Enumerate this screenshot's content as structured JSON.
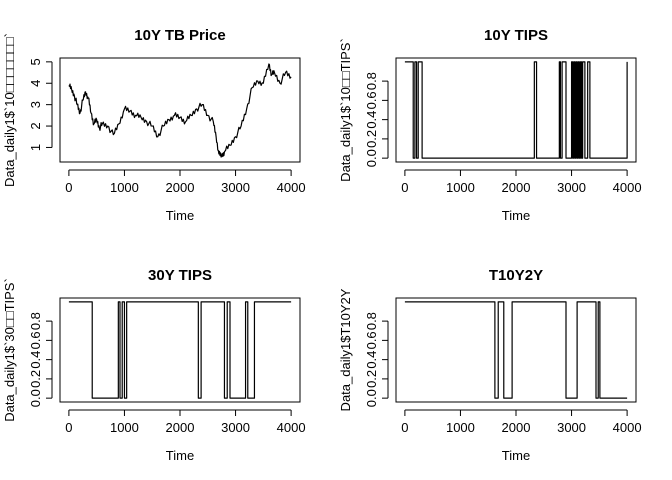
{
  "chart_data": [
    {
      "type": "line",
      "title": "10Y TB Price",
      "xlabel": "Time",
      "ylabel": "Data_daily1$`10□□□□□□□`",
      "xlim": [
        0,
        4000
      ],
      "ylim": [
        0.5,
        5.0
      ],
      "xticks": [
        0,
        1000,
        2000,
        3000,
        4000
      ],
      "yticks": [
        1,
        2,
        3,
        4,
        5
      ],
      "series": [
        {
          "x": [
            0,
            50,
            100,
            150,
            200,
            250,
            300,
            350,
            400,
            450,
            500,
            550,
            600,
            700,
            800,
            900,
            1000,
            1100,
            1200,
            1300,
            1400,
            1500,
            1600,
            1700,
            1800,
            1900,
            2000,
            2100,
            2200,
            2300,
            2400,
            2500,
            2600,
            2650,
            2700,
            2750,
            2800,
            2900,
            3000,
            3100,
            3200,
            3300,
            3400,
            3500,
            3600,
            3650,
            3700,
            3800,
            3900,
            4000
          ],
          "y": [
            3.9,
            3.7,
            3.4,
            3.0,
            2.6,
            3.2,
            3.6,
            3.3,
            2.6,
            2.1,
            2.3,
            1.9,
            2.1,
            2.0,
            1.6,
            2.1,
            2.8,
            2.7,
            2.5,
            2.4,
            2.2,
            2.0,
            1.5,
            2.0,
            2.3,
            2.5,
            2.4,
            2.2,
            2.5,
            2.8,
            3.0,
            2.5,
            2.2,
            1.5,
            0.7,
            0.6,
            0.8,
            1.1,
            1.5,
            2.0,
            2.8,
            3.8,
            4.1,
            4.0,
            4.9,
            4.4,
            4.5,
            4.0,
            4.5,
            4.3
          ]
        }
      ]
    },
    {
      "type": "line",
      "title": "10Y TIPS",
      "xlabel": "Time",
      "ylabel": "Data_daily1$`10□□TIPS`",
      "xlim": [
        0,
        4000
      ],
      "ylim": [
        0,
        1
      ],
      "xticks": [
        0,
        1000,
        2000,
        3000,
        4000
      ],
      "yticks": [
        0.0,
        0.2,
        0.4,
        0.6,
        0.8
      ],
      "ytick_labels": [
        "0.0",
        "0.2",
        "0.4",
        "0.6",
        "0.8"
      ],
      "series": [
        {
          "step": true,
          "x": [
            0,
            150,
            180,
            210,
            240,
            310,
            2330,
            2370,
            2780,
            2800,
            2830,
            2900,
            3000,
            3020,
            3040,
            3060,
            3080,
            3100,
            3120,
            3140,
            3160,
            3180,
            3200,
            3240,
            3290,
            3330,
            4000
          ],
          "y": [
            1,
            0,
            1,
            0,
            1,
            0,
            1,
            0,
            1,
            0,
            1,
            0,
            1,
            0,
            1,
            0,
            1,
            0,
            1,
            0,
            1,
            0,
            1,
            0,
            1,
            0,
            1
          ]
        }
      ]
    },
    {
      "type": "line",
      "title": "30Y TIPS",
      "xlabel": "Time",
      "ylabel": "Data_daily1$`30□□TIPS`",
      "xlim": [
        0,
        4000
      ],
      "ylim": [
        0,
        1
      ],
      "xticks": [
        0,
        1000,
        2000,
        3000,
        4000
      ],
      "yticks": [
        0.0,
        0.2,
        0.4,
        0.6,
        0.8
      ],
      "ytick_labels": [
        "0.0",
        "0.2",
        "0.4",
        "0.6",
        "0.8"
      ],
      "series": [
        {
          "step": true,
          "x": [
            0,
            420,
            890,
            920,
            960,
            1000,
            1040,
            2330,
            2380,
            2800,
            2850,
            2900,
            3180,
            3220,
            3340,
            4000
          ],
          "y": [
            1,
            0,
            1,
            0,
            1,
            0,
            1,
            0,
            1,
            0,
            1,
            0,
            1,
            0,
            1,
            1
          ]
        }
      ]
    },
    {
      "type": "line",
      "title": "T10Y2Y",
      "xlabel": "Time",
      "ylabel": "Data_daily1$T10Y2Y",
      "xlim": [
        0,
        4000
      ],
      "ylim": [
        0,
        1
      ],
      "xticks": [
        0,
        1000,
        2000,
        3000,
        4000
      ],
      "yticks": [
        0.0,
        0.2,
        0.4,
        0.6,
        0.8
      ],
      "ytick_labels": [
        "0.0",
        "0.2",
        "0.4",
        "0.6",
        "0.8"
      ],
      "series": [
        {
          "step": true,
          "x": [
            0,
            1620,
            1680,
            1780,
            1930,
            2900,
            3100,
            3440,
            3480,
            3510,
            3540,
            4000
          ],
          "y": [
            1,
            0,
            1,
            0,
            1,
            0,
            1,
            0,
            1,
            0,
            0,
            0
          ]
        }
      ]
    }
  ]
}
